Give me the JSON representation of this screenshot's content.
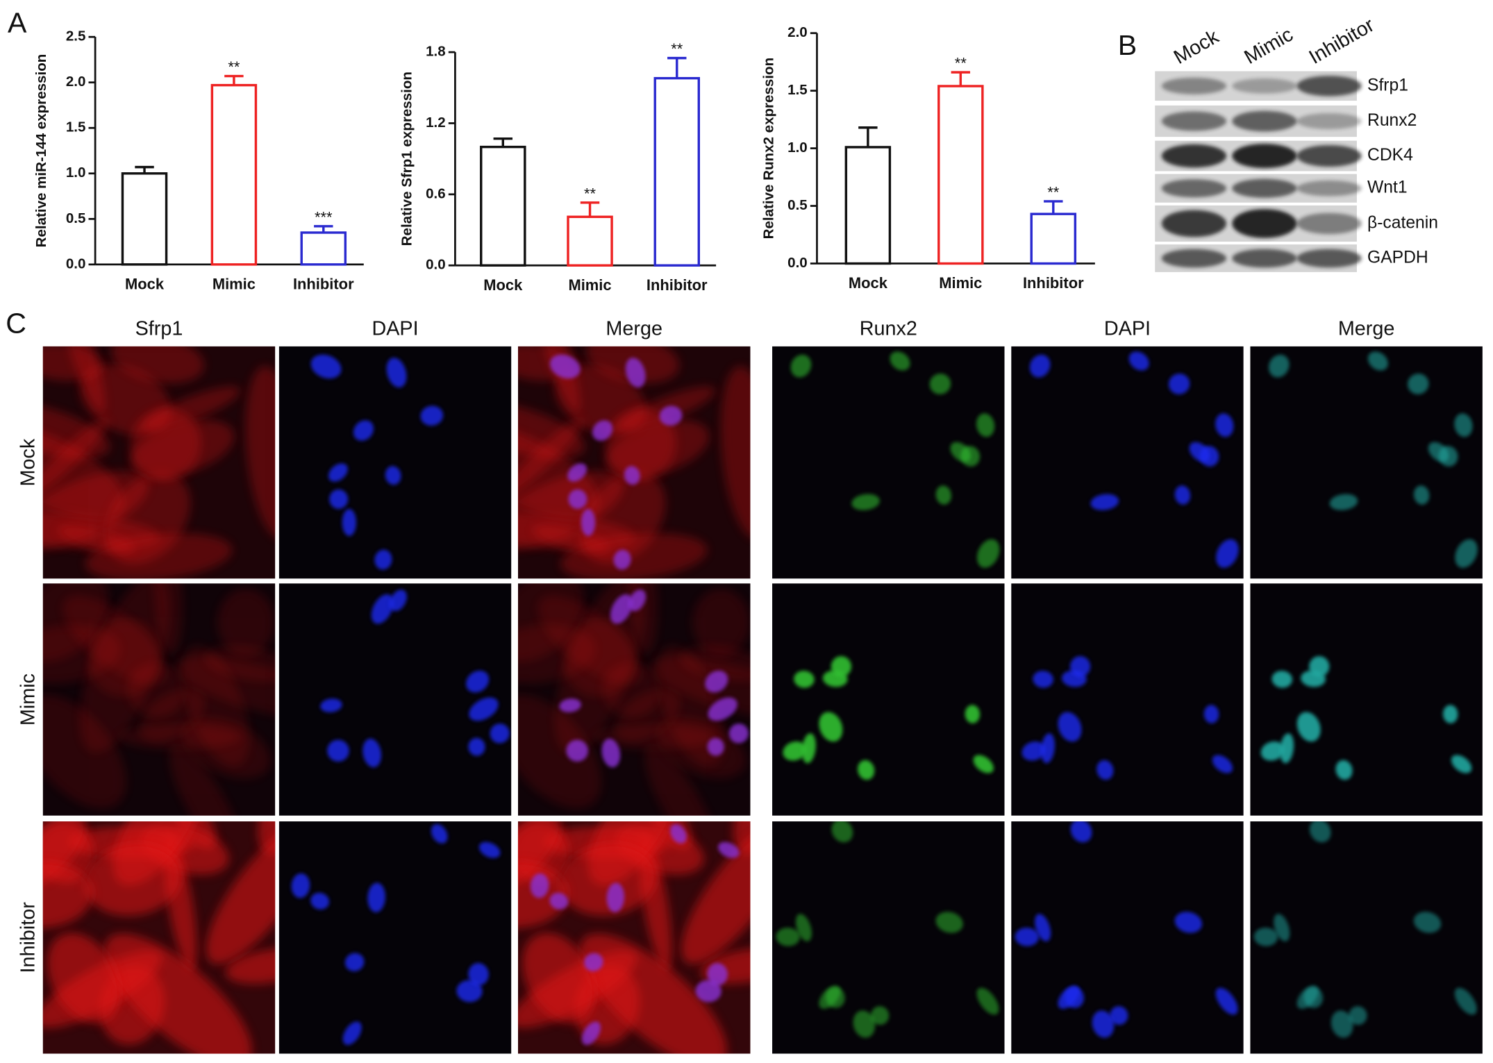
{
  "panel_labels": [
    "A",
    "B",
    "C"
  ],
  "chart_data": [
    {
      "type": "bar",
      "ylabel": "Relative miR-144 expression",
      "categories": [
        "Mock",
        "Mimic",
        "Inhibitor"
      ],
      "values": [
        1.0,
        1.97,
        0.35
      ],
      "errors": [
        0.07,
        0.1,
        0.07
      ],
      "annotations": [
        null,
        "**",
        "***"
      ],
      "colors": [
        "#111111",
        "#ee2222",
        "#2a2ad0"
      ],
      "ylim": [
        0,
        2.5
      ],
      "yticks": [
        {
          "value": 0,
          "label": "0.0"
        },
        0.5,
        {
          "value": 1,
          "label": "1.0"
        },
        1.5,
        {
          "value": 2,
          "label": "2.0"
        },
        2.5
      ]
    },
    {
      "type": "bar",
      "ylabel": "Relative Sfrp1 expression",
      "categories": [
        "Mock",
        "Mimic",
        "Inhibitor"
      ],
      "values": [
        1.0,
        0.41,
        1.58
      ],
      "errors": [
        0.07,
        0.12,
        0.17
      ],
      "annotations": [
        null,
        "**",
        "**"
      ],
      "colors": [
        "#111111",
        "#ee2222",
        "#2a2ad0"
      ],
      "ylim": [
        0,
        1.8
      ],
      "yticks": [
        {
          "value": 0,
          "label": "0.0"
        },
        0.6,
        1.2,
        1.8
      ]
    },
    {
      "type": "bar",
      "ylabel": "Relative Runx2 expression",
      "categories": [
        "Mock",
        "Mimic",
        "Inhibitor"
      ],
      "values": [
        1.01,
        1.54,
        0.43
      ],
      "errors": [
        0.17,
        0.12,
        0.11
      ],
      "annotations": [
        null,
        "**",
        "**"
      ],
      "colors": [
        "#111111",
        "#ee2222",
        "#2a2ad0"
      ],
      "ylim": [
        0,
        2.0
      ],
      "yticks": [
        {
          "value": 0,
          "label": "0.0"
        },
        0.5,
        {
          "value": 1,
          "label": "1.0"
        },
        1.5,
        {
          "value": 2,
          "label": "2.0"
        }
      ]
    }
  ],
  "blot": {
    "lanes": [
      "Mock",
      "Mimic",
      "Inhibitor"
    ],
    "proteins": [
      "Sfrp1",
      "Runx2",
      "CDK4",
      "Wnt1",
      "β-catenin",
      "GAPDH"
    ]
  },
  "microscopy": {
    "columns": [
      "Sfrp1",
      "DAPI",
      "Merge",
      "Runx2",
      "DAPI",
      "Merge"
    ],
    "rows": [
      "Mock",
      "Mimic",
      "Inhibitor"
    ]
  }
}
